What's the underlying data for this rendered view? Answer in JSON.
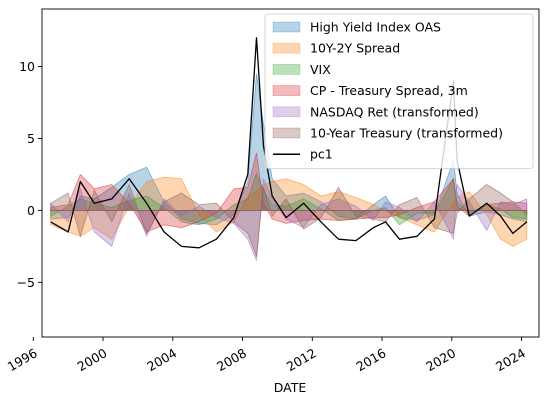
{
  "chart_data": {
    "type": "area",
    "title": "",
    "xlabel": "DATE",
    "ylabel": "",
    "xlim": [
      1996.5,
      2025.0
    ],
    "ylim": [
      -8.8,
      14.0
    ],
    "x_ticks": [
      {
        "value": 1996,
        "label": "1996"
      },
      {
        "value": 2000,
        "label": "2000"
      },
      {
        "value": 2004,
        "label": "2004"
      },
      {
        "value": 2008,
        "label": "2008"
      },
      {
        "value": 2012,
        "label": "2012"
      },
      {
        "value": 2016,
        "label": "2016"
      },
      {
        "value": 2020,
        "label": "2020"
      },
      {
        "value": 2024,
        "label": "2024"
      }
    ],
    "y_ticks": [
      {
        "value": -5,
        "label": "−5"
      },
      {
        "value": 0,
        "label": "0"
      },
      {
        "value": 5,
        "label": "5"
      },
      {
        "value": 10,
        "label": "10"
      }
    ],
    "grid": false,
    "legend_position": "top-right",
    "x": [
      1997.0,
      1998.0,
      1998.7,
      1999.5,
      2000.5,
      2001.5,
      2002.5,
      2003.5,
      2004.5,
      2005.5,
      2006.5,
      2007.5,
      2008.3,
      2008.8,
      2009.2,
      2009.7,
      2010.5,
      2011.5,
      2012.5,
      2013.5,
      2014.5,
      2015.5,
      2016.2,
      2017.0,
      2018.0,
      2019.0,
      2020.1,
      2020.3,
      2021.0,
      2022.0,
      2022.8,
      2023.5,
      2024.3
    ],
    "series": [
      {
        "name": "High Yield Index OAS",
        "kind": "area",
        "color": "#1f77b4",
        "values": [
          -0.6,
          -0.5,
          1.0,
          0.8,
          1.6,
          2.5,
          3.0,
          0.6,
          -0.6,
          -0.9,
          -1.0,
          -0.3,
          2.0,
          9.5,
          6.0,
          2.2,
          1.0,
          1.2,
          0.6,
          -0.4,
          -0.6,
          0.4,
          1.0,
          -0.5,
          -0.7,
          -0.3,
          3.5,
          1.2,
          -0.4,
          -0.1,
          -0.3,
          -0.6,
          -0.8
        ]
      },
      {
        "name": "10Y-2Y Spread",
        "kind": "area",
        "color": "#ff7f0e",
        "values": [
          -1.0,
          -1.5,
          -1.8,
          -1.2,
          -2.0,
          0.3,
          2.0,
          2.3,
          2.2,
          -0.3,
          -1.5,
          -0.8,
          1.0,
          1.3,
          1.8,
          2.0,
          2.2,
          1.8,
          1.0,
          1.3,
          0.9,
          0.4,
          0.0,
          -0.5,
          -1.0,
          -1.5,
          0.6,
          0.9,
          1.3,
          -0.3,
          -2.0,
          -2.5,
          -2.0
        ]
      },
      {
        "name": "VIX",
        "kind": "area",
        "color": "#2ca02c",
        "values": [
          -0.4,
          0.3,
          0.8,
          0.5,
          0.2,
          0.7,
          1.0,
          0.2,
          -0.8,
          -1.0,
          -0.6,
          0.4,
          0.8,
          2.6,
          1.4,
          0.4,
          0.3,
          0.8,
          0.1,
          -0.7,
          -0.6,
          0.0,
          0.2,
          -1.0,
          -0.2,
          -0.2,
          2.2,
          0.6,
          -0.2,
          0.4,
          0.1,
          -0.5,
          -0.6
        ]
      },
      {
        "name": "CP - Treasury Spread, 3m",
        "kind": "area",
        "color": "#d62728",
        "values": [
          0.2,
          0.4,
          2.5,
          1.5,
          1.8,
          0.5,
          -1.5,
          -1.0,
          -1.2,
          -0.8,
          -0.2,
          1.5,
          1.6,
          4.0,
          0.5,
          -0.6,
          -0.9,
          -0.7,
          -0.6,
          -0.7,
          -0.6,
          -0.5,
          -0.5,
          -0.3,
          0.2,
          0.6,
          2.2,
          0.3,
          -0.4,
          0.4,
          0.5,
          0.6,
          0.5
        ]
      },
      {
        "name": "NASDAQ Ret (transformed)",
        "kind": "area",
        "color": "#9467bd",
        "values": [
          0.5,
          -0.8,
          1.5,
          -1.5,
          -2.5,
          1.2,
          -1.8,
          0.8,
          -0.4,
          0.3,
          -0.5,
          -0.9,
          -2.0,
          -3.5,
          2.2,
          0.8,
          -0.6,
          -1.2,
          0.4,
          0.8,
          0.3,
          -0.7,
          0.6,
          0.2,
          -0.8,
          0.6,
          -2.0,
          1.8,
          0.6,
          -1.4,
          0.6,
          0.4,
          0.8
        ]
      },
      {
        "name": "10-Year Treasury (transformed)",
        "kind": "area",
        "color": "#8c564b",
        "values": [
          0.5,
          1.2,
          -1.8,
          1.4,
          -0.8,
          1.8,
          -1.6,
          0.6,
          1.2,
          0.4,
          0.5,
          -0.8,
          -1.6,
          -3.2,
          1.6,
          -0.4,
          0.8,
          -1.3,
          -0.5,
          1.6,
          -0.4,
          -0.6,
          -0.8,
          0.4,
          0.9,
          -1.2,
          -1.6,
          -0.2,
          0.8,
          1.8,
          1.2,
          0.6,
          -0.3
        ]
      },
      {
        "name": "pc1",
        "kind": "line",
        "color": "#000000",
        "values": [
          -0.8,
          -1.5,
          2.0,
          0.5,
          0.8,
          2.2,
          0.5,
          -1.5,
          -2.5,
          -2.6,
          -2.0,
          -0.5,
          2.5,
          12.0,
          4.5,
          1.0,
          -0.5,
          0.5,
          -0.8,
          -2.0,
          -2.1,
          -1.2,
          -0.8,
          -2.0,
          -1.8,
          -0.6,
          9.0,
          3.5,
          -0.4,
          0.5,
          -0.4,
          -1.6,
          -0.8
        ]
      }
    ]
  }
}
